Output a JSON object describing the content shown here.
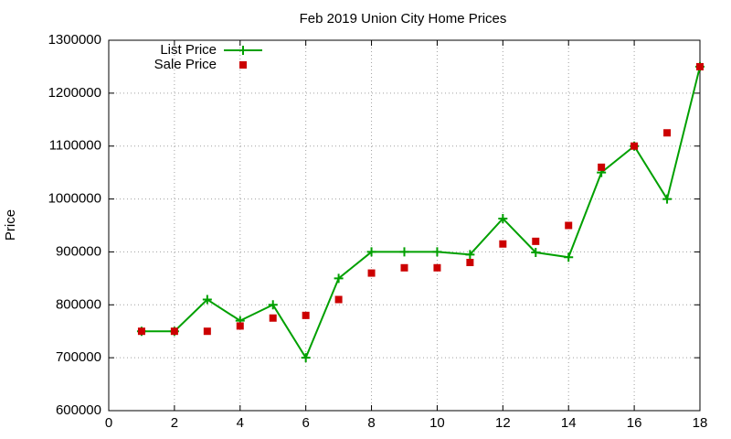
{
  "chart_data": {
    "type": "line",
    "title": "Feb 2019 Union City Home Prices",
    "y_label": "Price",
    "x": [
      1,
      2,
      3,
      4,
      5,
      6,
      7,
      8,
      9,
      10,
      11,
      12,
      13,
      14,
      15,
      16,
      17,
      18
    ],
    "series": [
      {
        "name": "List Price",
        "color": "#00a000",
        "mode": "lines+points",
        "marker": "plus",
        "values": [
          750000,
          750000,
          810000,
          770000,
          800000,
          700000,
          850000,
          900000,
          900000,
          900000,
          895000,
          963000,
          899000,
          890000,
          1050000,
          1100000,
          1000000,
          1250000
        ]
      },
      {
        "name": "Sale Price",
        "color": "#cc0000",
        "mode": "points",
        "marker": "square",
        "values": [
          750000,
          750000,
          750000,
          760000,
          775000,
          780000,
          810000,
          860000,
          870000,
          870000,
          880000,
          915000,
          920000,
          950000,
          1060000,
          1100000,
          1125000,
          1250000
        ]
      }
    ],
    "xlim": [
      0,
      18
    ],
    "xticks": [
      0,
      2,
      4,
      6,
      8,
      10,
      12,
      14,
      16,
      18
    ],
    "ylim": [
      600000,
      1300000
    ],
    "yticks": [
      600000,
      700000,
      800000,
      900000,
      1000000,
      1100000,
      1200000,
      1300000
    ],
    "grid": true,
    "legend": "top-left"
  }
}
